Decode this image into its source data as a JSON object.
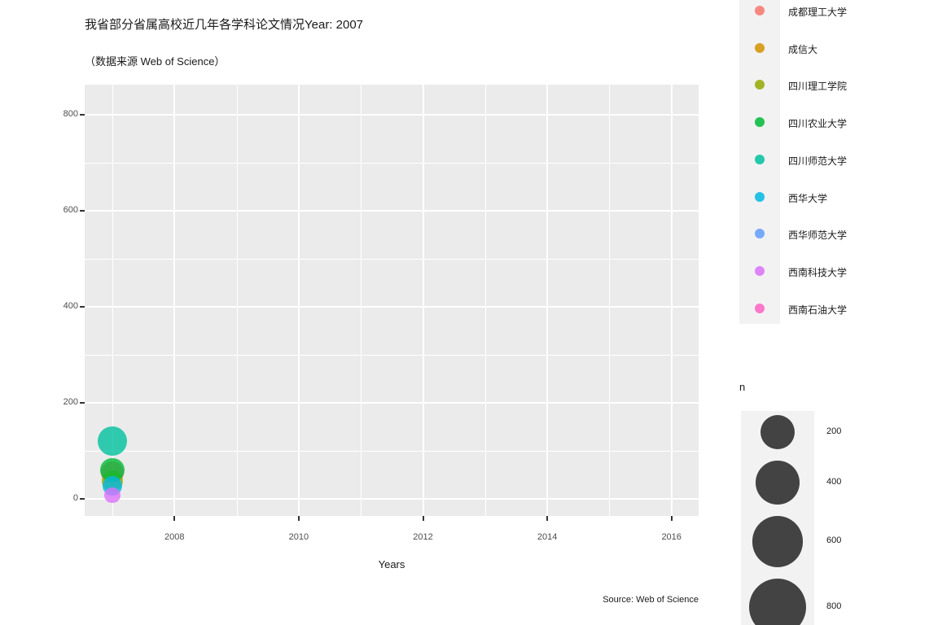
{
  "chart_data": {
    "type": "scatter",
    "title": "我省部分省属高校近几年各学科论文情况Year: 2007",
    "subtitle": "（数据来源 Web of Science）",
    "caption": "Source: Web of Science",
    "current_year": 2007,
    "x_axis": {
      "label": "Years",
      "major_ticks": [
        2008,
        2010,
        2012,
        2014,
        2016
      ],
      "minor_ticks": [
        2007,
        2009,
        2011,
        2013,
        2015
      ],
      "range": [
        2006.55,
        2016.45
      ]
    },
    "y_axis": {
      "label": "",
      "major_ticks": [
        0,
        200,
        400,
        600,
        800
      ],
      "minor_ticks": [
        100,
        300,
        500,
        700
      ],
      "range": [
        -36,
        862
      ]
    },
    "legend": {
      "position": "right",
      "universities": [
        {
          "name": "成都理工大学",
          "color": "#F8766D"
        },
        {
          "name": "成信大",
          "color": "#D39200"
        },
        {
          "name": "四川理工学院",
          "color": "#93AA00"
        },
        {
          "name": "四川农业大学",
          "color": "#00BA38"
        },
        {
          "name": "四川师范大学",
          "color": "#00C19F"
        },
        {
          "name": "西华大学",
          "color": "#00B9E3"
        },
        {
          "name": "西华师范大学",
          "color": "#619CFF"
        },
        {
          "name": "西南科技大学",
          "color": "#DB72FB"
        },
        {
          "name": "西南石油大学",
          "color": "#FF61C3"
        }
      ]
    },
    "size_legend": {
      "title": "n",
      "values": [
        200,
        400,
        600,
        800
      ],
      "circle_color": "#434343"
    },
    "bubbles": [
      {
        "university": "成都理工大学",
        "year": 2007,
        "n": 54
      },
      {
        "university": "四川理工学院",
        "year": 2007,
        "n": 38
      },
      {
        "university": "四川农业大学",
        "year": 2007,
        "n": 60
      },
      {
        "university": "四川师范大学",
        "year": 2007,
        "n": 120
      },
      {
        "university": "西华大学",
        "year": 2007,
        "n": 27
      },
      {
        "university": "西南科技大学",
        "year": 2007,
        "n": 8
      }
    ]
  }
}
